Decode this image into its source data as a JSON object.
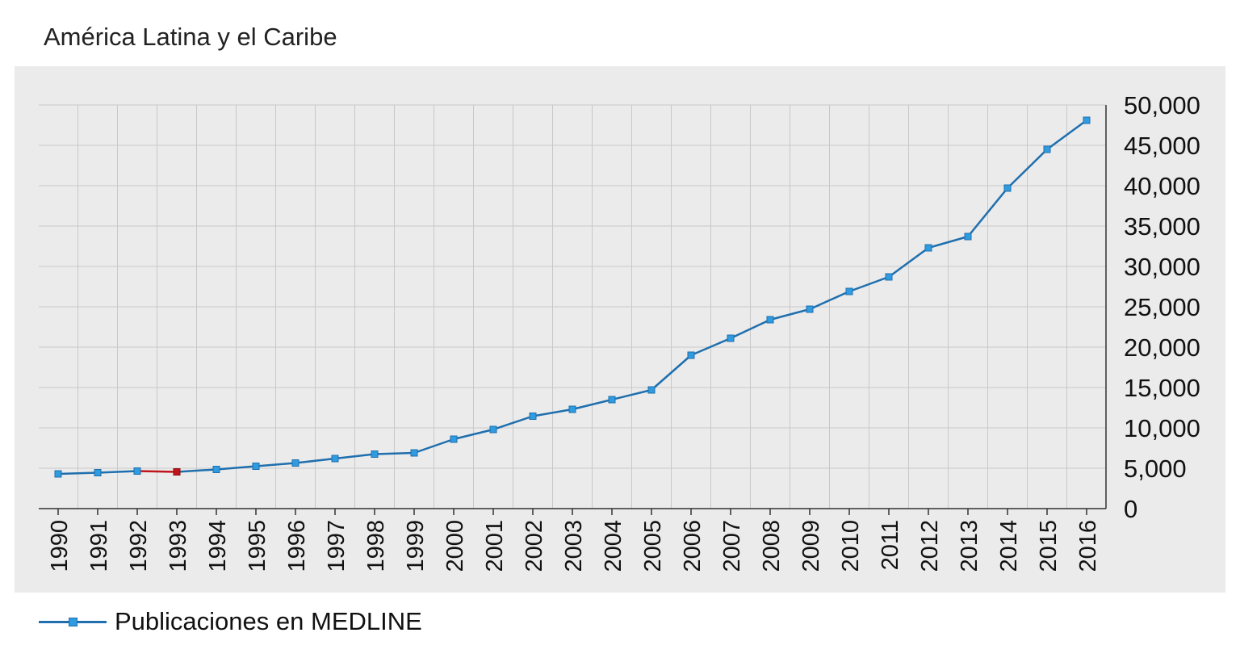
{
  "title": "América Latina y el Caribe",
  "colors": {
    "panel_background": "#ebebeb",
    "grid": "#c8c8c8",
    "line": "#1f6fae",
    "marker": "#2f9be0",
    "highlight": "#c0141b"
  },
  "chart_data": {
    "type": "line",
    "title": "América Latina y el Caribe",
    "xlabel": "",
    "ylabel": "",
    "x": [
      "1990",
      "1991",
      "1992",
      "1993",
      "1994",
      "1995",
      "1996",
      "1997",
      "1998",
      "1999",
      "2000",
      "2001",
      "2002",
      "2003",
      "2004",
      "2005",
      "2006",
      "2007",
      "2008",
      "2009",
      "2010",
      "2011",
      "2012",
      "2013",
      "2014",
      "2015",
      "2016"
    ],
    "ylim": [
      0,
      50000
    ],
    "yticks": [
      "0",
      "5,000",
      "10,000",
      "15,000",
      "20,000",
      "25,000",
      "30,000",
      "35,000",
      "40,000",
      "45,000",
      "50,000"
    ],
    "y_axis_position": "right",
    "grid": true,
    "legend_position": "bottom-left",
    "series": [
      {
        "name": "Publicaciones en MEDLINE",
        "values": [
          4300,
          4450,
          4650,
          4550,
          4850,
          5250,
          5650,
          6200,
          6750,
          6900,
          8600,
          9800,
          11450,
          12300,
          13500,
          14700,
          19000,
          21100,
          23400,
          24700,
          26900,
          28700,
          32300,
          33700,
          39700,
          44500,
          48100
        ],
        "highlight_index": 3
      }
    ]
  },
  "legend": {
    "label": "Publicaciones en MEDLINE"
  }
}
